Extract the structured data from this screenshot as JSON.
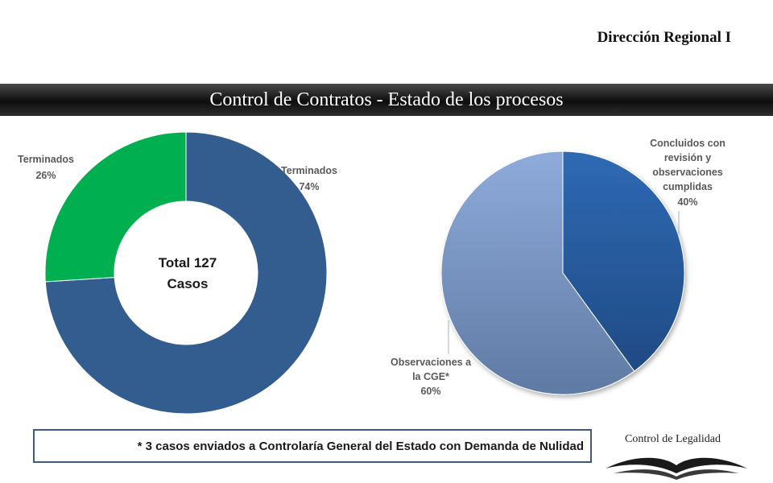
{
  "header": {
    "region": "Dirección Regional I",
    "title": "Control de Contratos - Estado de los procesos"
  },
  "chart_data": [
    {
      "type": "pie",
      "variant": "donut",
      "center_label": [
        "Total 127",
        "Casos"
      ],
      "slices": [
        {
          "label": "Terminados",
          "value": 74,
          "display": "74%",
          "color": "#335c8f"
        },
        {
          "label": "Terminados",
          "value": 26,
          "display": "26%",
          "color": "#00b050"
        }
      ]
    },
    {
      "type": "pie",
      "slices": [
        {
          "label_lines": [
            "Concluidos con",
            "revisión y",
            "observaciones",
            "cumplidas"
          ],
          "value": 40,
          "display": "40%",
          "color": "#2f65ad"
        },
        {
          "label_lines": [
            "Observaciones a",
            "la CGE*"
          ],
          "value": 60,
          "display": "60%",
          "color": "#7f9dcc"
        }
      ]
    }
  ],
  "note": "* 3 casos enviados a Controlaría General del Estado con Demanda de Nulidad",
  "footer": {
    "label": "Control de Legalidad",
    "logo_icon": "open-book-icon"
  }
}
